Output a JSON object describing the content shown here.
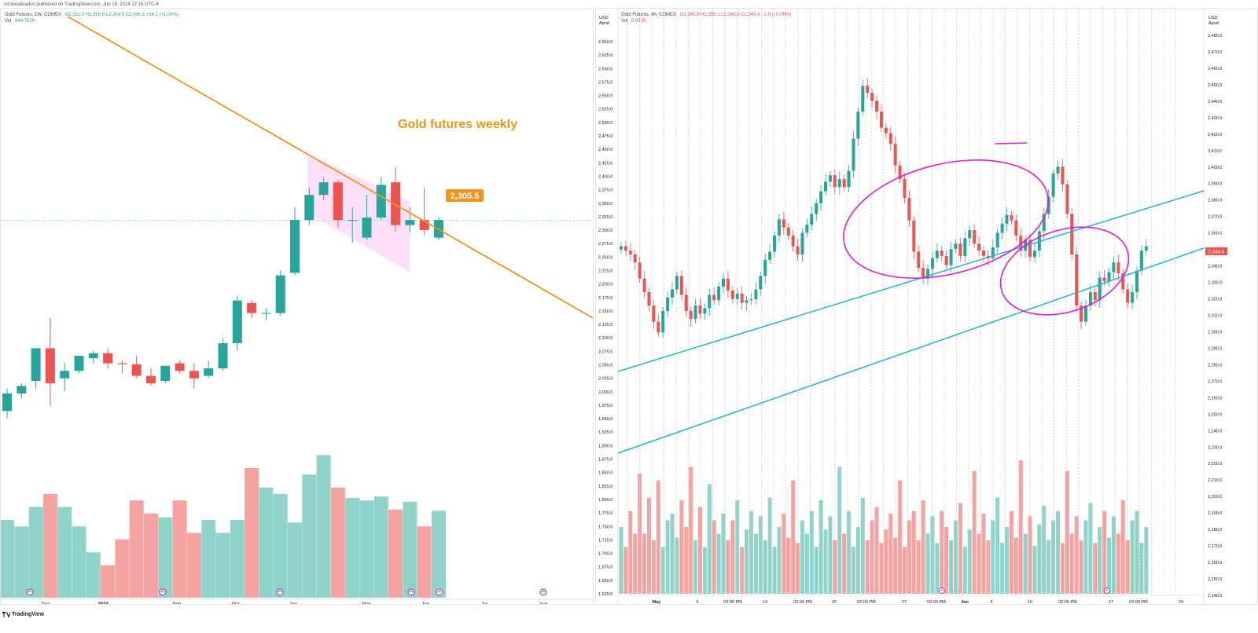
{
  "header": {
    "publisher_note": "cordovabrados published on TradingView.com, Jun 15, 2024 22:15 UTC-4"
  },
  "footer": {
    "brand": "TradingView"
  },
  "colors": {
    "up": "#26a69a",
    "down": "#ef5350",
    "up_vol": "#8fd3cb",
    "down_vol": "#f5a3a1",
    "trendline": "#f7931a",
    "channel": "#1fb5d4",
    "circle": "#e619d9",
    "wedge": "#fbd7f6"
  },
  "left_chart": {
    "legend": {
      "symbol": "Gold Futures, 1W, COMEX",
      "ohlc": "O2,311.0 H2,356.8 L2,304.5 C2,345.1 +34.1 (+1.04%)",
      "vol_label": "Vol",
      "vol_value": "844.702K"
    },
    "annotation": "Gold futures weekly",
    "price_tag": "2,305.5",
    "flag_icon": "flag-icon"
  },
  "right_chart": {
    "legend": {
      "symbol": "Gold Futures, 4h, COMEX",
      "ohlc": "O2,345.9 H2,355.1 L2,346.6 C2,345.4 −1.5 (−0.06%)",
      "vol_label": "Vol",
      "vol_value": "8.972K"
    },
    "last_price_tag": "2,348.4",
    "left_axis_units": [
      "USD",
      "Apod"
    ],
    "right_axis_units": [
      "USD",
      "Apod"
    ]
  },
  "chart_data": [
    {
      "type": "candlestick",
      "title": "Gold futures weekly",
      "timeframe": "1W",
      "x_labels": [
        "Dec",
        "2024",
        "Feb",
        "Mar",
        "Apr",
        "May",
        "Jun",
        "Jul",
        "Aug"
      ],
      "candles": [
        {
          "o": 1965,
          "h": 2010,
          "l": 1950,
          "c": 2000
        },
        {
          "o": 2000,
          "h": 2020,
          "l": 1990,
          "c": 2015
        },
        {
          "o": 2025,
          "h": 2090,
          "l": 2010,
          "c": 2090
        },
        {
          "o": 2090,
          "h": 2150,
          "l": 1975,
          "c": 2020
        },
        {
          "o": 2030,
          "h": 2060,
          "l": 2005,
          "c": 2045
        },
        {
          "o": 2045,
          "h": 2075,
          "l": 2040,
          "c": 2075
        },
        {
          "o": 2070,
          "h": 2085,
          "l": 2060,
          "c": 2080
        },
        {
          "o": 2080,
          "h": 2090,
          "l": 2050,
          "c": 2060
        },
        {
          "o": 2060,
          "h": 2065,
          "l": 2040,
          "c": 2058
        },
        {
          "o": 2058,
          "h": 2075,
          "l": 2030,
          "c": 2035
        },
        {
          "o": 2035,
          "h": 2050,
          "l": 2015,
          "c": 2020
        },
        {
          "o": 2025,
          "h": 2055,
          "l": 2020,
          "c": 2055
        },
        {
          "o": 2060,
          "h": 2065,
          "l": 2040,
          "c": 2045
        },
        {
          "o": 2045,
          "h": 2060,
          "l": 2010,
          "c": 2030
        },
        {
          "o": 2035,
          "h": 2065,
          "l": 2030,
          "c": 2050
        },
        {
          "o": 2050,
          "h": 2110,
          "l": 2045,
          "c": 2100
        },
        {
          "o": 2100,
          "h": 2195,
          "l": 2085,
          "c": 2185
        },
        {
          "o": 2180,
          "h": 2185,
          "l": 2150,
          "c": 2160
        },
        {
          "o": 2160,
          "h": 2170,
          "l": 2145,
          "c": 2160
        },
        {
          "o": 2160,
          "h": 2245,
          "l": 2155,
          "c": 2235
        },
        {
          "o": 2240,
          "h": 2370,
          "l": 2235,
          "c": 2345
        },
        {
          "o": 2345,
          "h": 2410,
          "l": 2335,
          "c": 2395
        },
        {
          "o": 2395,
          "h": 2430,
          "l": 2385,
          "c": 2420
        },
        {
          "o": 2420,
          "h": 2425,
          "l": 2330,
          "c": 2345
        },
        {
          "o": 2345,
          "h": 2370,
          "l": 2300,
          "c": 2345
        },
        {
          "o": 2310,
          "h": 2395,
          "l": 2305,
          "c": 2350
        },
        {
          "o": 2350,
          "h": 2430,
          "l": 2345,
          "c": 2415
        },
        {
          "o": 2420,
          "h": 2450,
          "l": 2320,
          "c": 2335
        },
        {
          "o": 2335,
          "h": 2370,
          "l": 2320,
          "c": 2345
        },
        {
          "o": 2345,
          "h": 2410,
          "l": 2315,
          "c": 2325
        },
        {
          "o": 2310,
          "h": 2350,
          "l": 2305,
          "c": 2345
        }
      ],
      "volume": [
        0.6,
        0.55,
        0.7,
        0.8,
        0.7,
        0.55,
        0.35,
        0.25,
        0.45,
        0.75,
        0.65,
        0.62,
        0.75,
        0.5,
        0.6,
        0.5,
        0.6,
        1.0,
        0.85,
        0.8,
        0.58,
        0.95,
        1.1,
        0.85,
        0.77,
        0.75,
        0.78,
        0.68,
        0.74,
        0.55,
        0.67
      ],
      "annotations": [
        "Gold futures weekly",
        "2,305.5"
      ]
    },
    {
      "type": "candlestick",
      "timeframe": "4h",
      "y_ticks_left": [
        "2,650.0",
        "2,625.0",
        "2,600.0",
        "2,575.0",
        "2,550.0",
        "2,525.0",
        "2,500.0",
        "2,475.0",
        "2,450.0",
        "2,425.0",
        "2,400.0",
        "2,375.0",
        "2,350.0",
        "2,325.0",
        "2,300.0",
        "2,275.0",
        "2,250.0",
        "2,225.0",
        "2,200.0",
        "2,175.0",
        "2,150.0",
        "2,125.0",
        "2,100.0",
        "2,075.0",
        "2,050.0",
        "2,025.0",
        "2,000.0",
        "1,975.0",
        "1,950.0",
        "1,925.0",
        "1,900.0",
        "1,875.0",
        "1,850.0",
        "1,825.0",
        "1,800.0",
        "1,775.0",
        "1,750.0",
        "1,725.0",
        "1,700.0",
        "1,675.0",
        "1,650.0",
        "1,625.0"
      ],
      "y_ticks_right": [
        "2,480.0",
        "2,470.0",
        "2,460.0",
        "2,450.0",
        "2,440.0",
        "2,430.0",
        "2,420.0",
        "2,410.0",
        "2,400.0",
        "2,390.0",
        "2,380.0",
        "2,370.0",
        "2,360.0",
        "2,350.0",
        "2,340.0",
        "2,330.0",
        "2,320.0",
        "2,310.0",
        "2,300.0",
        "2,290.0",
        "2,280.0",
        "2,270.0",
        "2,260.0",
        "2,250.0",
        "2,240.0",
        "2,230.0",
        "2,220.0",
        "2,210.0",
        "2,200.0",
        "2,190.0",
        "2,180.0",
        "2,170.0",
        "2,160.0",
        "2,150.0",
        "2,140.0"
      ],
      "x_labels": [
        "May",
        "6",
        "02:00 PM",
        "13",
        "02:00 PM",
        "20",
        "02:00 PM",
        "27",
        "02:00 PM",
        "Jun",
        "5",
        "10",
        "02:00 PM",
        "17",
        "02:00 PM",
        "24"
      ],
      "close_path": [
        2270,
        2262,
        2255,
        2240,
        2210,
        2185,
        2160,
        2130,
        2110,
        2150,
        2175,
        2190,
        2215,
        2180,
        2150,
        2135,
        2160,
        2145,
        2155,
        2180,
        2170,
        2195,
        2210,
        2188,
        2172,
        2182,
        2165,
        2170,
        2172,
        2190,
        2215,
        2245,
        2260,
        2290,
        2320,
        2305,
        2290,
        2270,
        2255,
        2295,
        2310,
        2330,
        2350,
        2372,
        2390,
        2402,
        2380,
        2395,
        2380,
        2410,
        2470,
        2520,
        2568,
        2555,
        2540,
        2520,
        2490,
        2480,
        2460,
        2420,
        2395,
        2360,
        2318,
        2260,
        2230,
        2210,
        2228,
        2248,
        2262,
        2252,
        2235,
        2265,
        2275,
        2252,
        2285,
        2300,
        2275,
        2262,
        2252,
        2248,
        2268,
        2295,
        2312,
        2328,
        2318,
        2290,
        2262,
        2282,
        2250,
        2262,
        2298,
        2330,
        2362,
        2405,
        2418,
        2385,
        2330,
        2255,
        2160,
        2130,
        2160,
        2185,
        2170,
        2212,
        2205,
        2222,
        2240,
        2220,
        2190,
        2165,
        2185,
        2225,
        2262,
        2270
      ],
      "volume": [
        0.5,
        0.35,
        0.62,
        0.45,
        0.9,
        0.45,
        0.72,
        0.4,
        0.85,
        0.35,
        0.55,
        0.6,
        0.42,
        0.7,
        0.5,
        0.95,
        0.4,
        0.65,
        0.35,
        0.82,
        0.55,
        0.45,
        0.6,
        0.4,
        0.55,
        0.7,
        0.35,
        0.48,
        0.62,
        0.45,
        0.58,
        0.4,
        0.72,
        0.35,
        0.5,
        0.6,
        0.42,
        0.85,
        0.38,
        0.55,
        0.45,
        0.62,
        0.35,
        0.7,
        0.48,
        0.58,
        0.4,
        0.95,
        0.45,
        0.62,
        0.35,
        0.5,
        0.72,
        0.4,
        0.55,
        0.65,
        0.38,
        0.48,
        0.6,
        0.42,
        0.85,
        0.35,
        0.55,
        0.62,
        0.4,
        0.7,
        0.45,
        0.58,
        0.38,
        0.62,
        0.5,
        0.4,
        0.55,
        0.68,
        0.35,
        0.48,
        0.92,
        0.45,
        0.6,
        0.4,
        0.55,
        0.72,
        0.38,
        0.5,
        0.62,
        0.42,
        1.0,
        0.45,
        0.58,
        0.36,
        0.52,
        0.66,
        0.4,
        0.55,
        0.62,
        0.38,
        0.92,
        0.45,
        0.58,
        0.4,
        0.55,
        0.68,
        0.38,
        0.5,
        0.62,
        0.42,
        0.58,
        0.45,
        0.7,
        0.4,
        0.55,
        0.62,
        0.38,
        0.5
      ],
      "annotations": [
        "2,348.4"
      ]
    }
  ]
}
